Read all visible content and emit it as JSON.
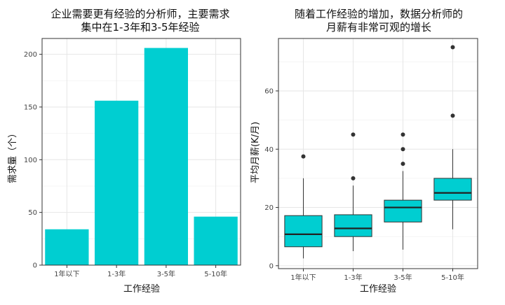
{
  "chart_data": [
    {
      "type": "bar",
      "title_lines": [
        "企业需要更有经验的分析师，主要需求",
        "集中在1-3年和3-5年经验"
      ],
      "xlabel": "工作经验",
      "ylabel": "需求量（个）",
      "categories": [
        "1年以下",
        "1-3年",
        "3-5年",
        "5-10年"
      ],
      "values": [
        34,
        156,
        206,
        46
      ],
      "ylim": [
        0,
        215
      ],
      "yticks": [
        0,
        50,
        100,
        150,
        200
      ],
      "yticks_minor": [
        25,
        75,
        125,
        175
      ],
      "color": "#00CED1",
      "grid": true
    },
    {
      "type": "box",
      "title_lines": [
        "随着工作经验的增加，数据分析师的",
        "月薪有非常可观的增长"
      ],
      "xlabel": "工作经验",
      "ylabel": "平均月薪(K/月)",
      "categories": [
        "1年以下",
        "1-3年",
        "3-5年",
        "5-10年"
      ],
      "boxes": [
        {
          "min": 2.5,
          "q1": 6.5,
          "median": 10.8,
          "q3": 17.2,
          "max": 30,
          "outliers": [
            37.5
          ]
        },
        {
          "min": 5,
          "q1": 10,
          "median": 12.8,
          "q3": 17.5,
          "max": 27.5,
          "outliers": [
            30,
            45
          ]
        },
        {
          "min": 5.5,
          "q1": 15,
          "median": 20,
          "q3": 22.5,
          "max": 32.5,
          "outliers": [
            35,
            40,
            45
          ]
        },
        {
          "min": 12.5,
          "q1": 22.5,
          "median": 25,
          "q3": 30,
          "max": 40,
          "outliers": [
            51.5,
            75
          ]
        }
      ],
      "ylim": [
        -1,
        78
      ],
      "yticks": [
        0,
        20,
        40,
        60
      ],
      "yticks_minor": [
        10,
        30,
        50,
        70
      ],
      "color": "#00CED1",
      "grid": true
    }
  ]
}
